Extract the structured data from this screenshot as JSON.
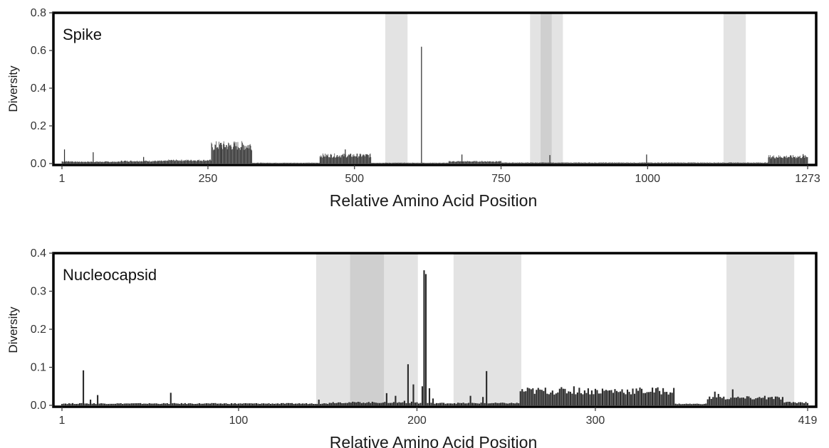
{
  "colors": {
    "bar": "#2b2b2b",
    "highlight_light": "#e3e3e3",
    "highlight_dark": "#cfcfcf",
    "frame": "#000000"
  },
  "chart_data": [
    {
      "type": "bar",
      "title": "Spike",
      "xlabel": "Relative Amino Acid Position",
      "ylabel": "Diversity",
      "xlim": [
        1,
        1273
      ],
      "ylim": [
        0,
        0.8
      ],
      "x_ticks": [
        1,
        250,
        500,
        750,
        1000,
        1273
      ],
      "x_tick_labels": [
        "1",
        "250",
        "500",
        "750",
        "1000",
        "1273"
      ],
      "y_ticks": [
        0.0,
        0.2,
        0.4,
        0.6,
        0.8
      ],
      "y_tick_labels": [
        "0.0",
        "0.2",
        "0.4",
        "0.6",
        "0.8"
      ],
      "grid": false,
      "highlight_regions": [
        {
          "from": 553,
          "to": 590,
          "shade": "light"
        },
        {
          "from": 800,
          "to": 855,
          "shade": "light"
        },
        {
          "from": 818,
          "to": 836,
          "shade": "dark"
        },
        {
          "from": 1130,
          "to": 1167,
          "shade": "light"
        }
      ],
      "segments": [
        {
          "from": 1,
          "to": 20,
          "value": 0.012
        },
        {
          "from": 21,
          "to": 100,
          "value": 0.01
        },
        {
          "from": 101,
          "to": 180,
          "value": 0.014
        },
        {
          "from": 181,
          "to": 255,
          "value": 0.018
        },
        {
          "from": 256,
          "to": 262,
          "value": 0.095
        },
        {
          "from": 263,
          "to": 325,
          "value": 0.1
        },
        {
          "from": 326,
          "to": 440,
          "value": 0.004
        },
        {
          "from": 441,
          "to": 528,
          "value": 0.045
        },
        {
          "from": 529,
          "to": 660,
          "value": 0.004
        },
        {
          "from": 661,
          "to": 750,
          "value": 0.012
        },
        {
          "from": 751,
          "to": 1205,
          "value": 0.005
        },
        {
          "from": 1206,
          "to": 1273,
          "value": 0.038
        }
      ],
      "spikes": [
        {
          "x": 5,
          "value": 0.075
        },
        {
          "x": 54,
          "value": 0.06
        },
        {
          "x": 140,
          "value": 0.035
        },
        {
          "x": 272,
          "value": 0.11
        },
        {
          "x": 484,
          "value": 0.075
        },
        {
          "x": 614,
          "value": 0.62
        },
        {
          "x": 683,
          "value": 0.048
        },
        {
          "x": 833,
          "value": 0.045
        },
        {
          "x": 998,
          "value": 0.048
        },
        {
          "x": 1265,
          "value": 0.05
        }
      ]
    },
    {
      "type": "bar",
      "title": "Nucleocapsid",
      "xlabel": "Relative Amino Acid Position",
      "ylabel": "Diversity",
      "xlim": [
        1,
        419
      ],
      "ylim": [
        0,
        0.4
      ],
      "x_ticks": [
        1,
        100,
        200,
        300,
        419
      ],
      "x_tick_labels": [
        "1",
        "100",
        "200",
        "300",
        "419"
      ],
      "y_ticks": [
        0.0,
        0.1,
        0.2,
        0.3,
        0.4
      ],
      "y_tick_labels": [
        "0.0",
        "0.1",
        "0.2",
        "0.3",
        "0.4"
      ],
      "grid": false,
      "highlight_regions": [
        {
          "from": 144,
          "to": 200,
          "shade": "light"
        },
        {
          "from": 163,
          "to": 181,
          "shade": "dark"
        },
        {
          "from": 221,
          "to": 258,
          "shade": "light"
        },
        {
          "from": 374,
          "to": 411,
          "shade": "light"
        }
      ],
      "segments": [
        {
          "from": 1,
          "to": 150,
          "value": 0.005
        },
        {
          "from": 151,
          "to": 200,
          "value": 0.008
        },
        {
          "from": 201,
          "to": 257,
          "value": 0.006
        },
        {
          "from": 258,
          "to": 344,
          "value": 0.04
        },
        {
          "from": 345,
          "to": 362,
          "value": 0.004
        },
        {
          "from": 363,
          "to": 405,
          "value": 0.02
        },
        {
          "from": 406,
          "to": 419,
          "value": 0.008
        }
      ],
      "spikes": [
        {
          "x": 13,
          "value": 0.092
        },
        {
          "x": 17,
          "value": 0.015
        },
        {
          "x": 21,
          "value": 0.027
        },
        {
          "x": 62,
          "value": 0.033
        },
        {
          "x": 145,
          "value": 0.015
        },
        {
          "x": 183,
          "value": 0.032
        },
        {
          "x": 188,
          "value": 0.025
        },
        {
          "x": 193,
          "value": 0.012
        },
        {
          "x": 195,
          "value": 0.108
        },
        {
          "x": 198,
          "value": 0.055
        },
        {
          "x": 203,
          "value": 0.05
        },
        {
          "x": 204,
          "value": 0.355
        },
        {
          "x": 205,
          "value": 0.345
        },
        {
          "x": 207,
          "value": 0.045
        },
        {
          "x": 209,
          "value": 0.018
        },
        {
          "x": 230,
          "value": 0.025
        },
        {
          "x": 237,
          "value": 0.022
        },
        {
          "x": 239,
          "value": 0.09
        },
        {
          "x": 288,
          "value": 0.05
        },
        {
          "x": 367,
          "value": 0.036
        },
        {
          "x": 369,
          "value": 0.03
        },
        {
          "x": 377,
          "value": 0.042
        },
        {
          "x": 395,
          "value": 0.025
        }
      ]
    }
  ]
}
